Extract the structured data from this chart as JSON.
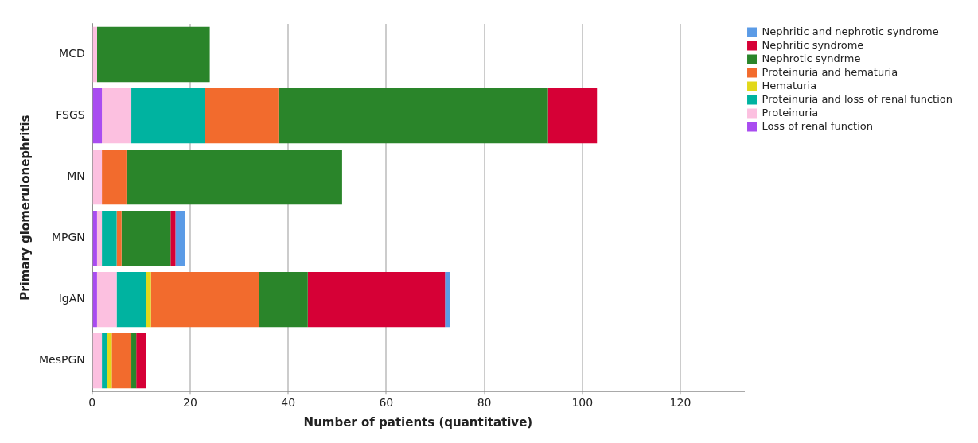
{
  "chart_data": {
    "type": "bar",
    "orientation": "horizontal",
    "stacked": true,
    "xlabel": "Number of patients (quantitative)",
    "ylabel": "Primary glomerulonephritis",
    "categories": [
      "MCD",
      "FSGS",
      "MN",
      "MPGN",
      "IgAN",
      "MesPGN"
    ],
    "series": [
      {
        "name": "Loss of renal function",
        "color": "#a94cf0",
        "values": [
          0,
          2,
          0,
          1,
          1,
          0
        ]
      },
      {
        "name": "Proteinuria",
        "color": "#fcc0e0",
        "values": [
          1,
          6,
          2,
          1,
          4,
          2
        ]
      },
      {
        "name": "Proteinuria and loss of renal function",
        "color": "#00b3a0",
        "values": [
          0,
          15,
          0,
          3,
          6,
          1
        ]
      },
      {
        "name": "Hematuria",
        "color": "#e2d81a",
        "values": [
          0,
          0,
          0,
          0,
          1,
          1
        ]
      },
      {
        "name": "Proteinuria and hematuria",
        "color": "#f26b2d",
        "values": [
          0,
          15,
          5,
          1,
          22,
          4
        ]
      },
      {
        "name": "Nephrotic syndrme",
        "color": "#2a852a",
        "values": [
          23,
          55,
          44,
          10,
          10,
          1
        ]
      },
      {
        "name": "Nephritic syndrome",
        "color": "#d60036",
        "values": [
          0,
          10,
          0,
          1,
          28,
          2
        ]
      },
      {
        "name": "Nephritic and nephrotic syndrome",
        "color": "#5b9be6",
        "values": [
          0,
          0,
          0,
          2,
          1,
          0
        ]
      }
    ],
    "xlim": [
      0,
      133
    ],
    "xticks": [
      0,
      20,
      40,
      60,
      80,
      100,
      120
    ],
    "grid": "x",
    "legend": "top right"
  }
}
